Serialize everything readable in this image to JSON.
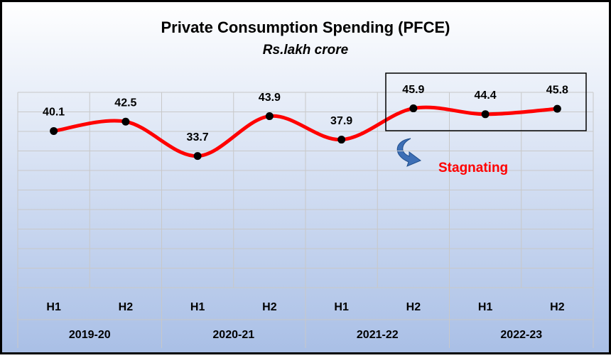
{
  "chart_data": {
    "type": "line",
    "title": "Private Consumption Spending (PFCE)",
    "subtitle": "Rs.lakh crore",
    "categories": [
      "H1",
      "H2",
      "H1",
      "H2",
      "H1",
      "H2",
      "H1",
      "H2"
    ],
    "groups": [
      "2019-20",
      "2020-21",
      "2021-22",
      "2022-23"
    ],
    "values": [
      40.1,
      42.5,
      33.7,
      43.9,
      37.9,
      45.9,
      44.4,
      45.8
    ],
    "color": "#ff0000",
    "ylim": [
      0,
      50
    ],
    "yticks": [
      0,
      5,
      10,
      15,
      20,
      25,
      30,
      35,
      40,
      45,
      50
    ],
    "grid": true,
    "annotations": [
      {
        "text": "Stagnating",
        "color": "#ff0000"
      }
    ]
  }
}
